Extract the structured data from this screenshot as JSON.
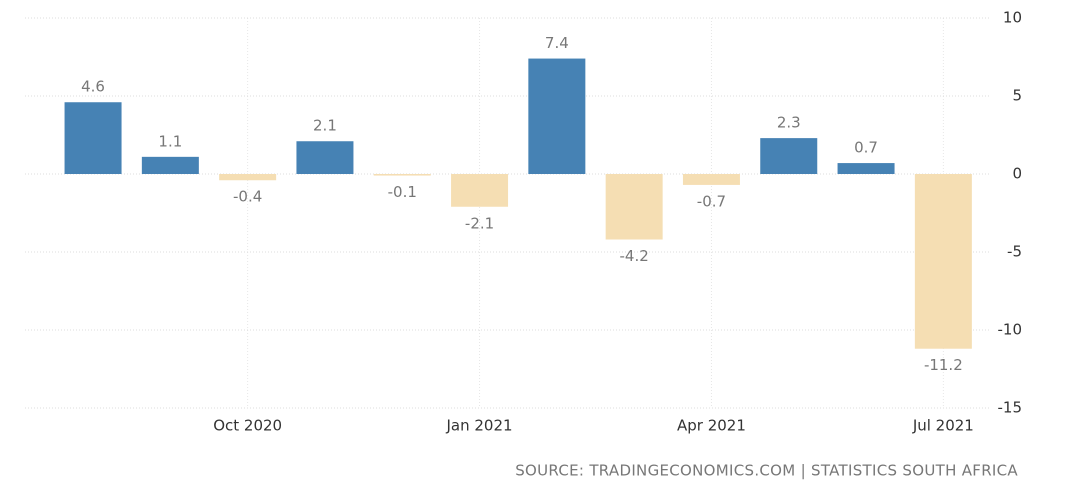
{
  "chart_data": {
    "type": "bar",
    "categories": [
      null,
      null,
      "Oct 2020",
      null,
      null,
      "Jan 2021",
      null,
      null,
      "Apr 2021",
      null,
      null,
      "Jul 2021"
    ],
    "values": [
      4.6,
      1.1,
      -0.4,
      2.1,
      -0.1,
      -2.1,
      7.4,
      -4.2,
      -0.7,
      2.3,
      0.7,
      -11.2
    ],
    "colors": [
      "#4682b4",
      "#4682b4",
      "#f5deb3",
      "#4682b4",
      "#f5deb3",
      "#f5deb3",
      "#4682b4",
      "#f5deb3",
      "#f5deb3",
      "#4682b4",
      "#4682b4",
      "#f5deb3"
    ],
    "ylim": [
      -15,
      10
    ],
    "yticks": [
      -15,
      -10,
      -5,
      0,
      5,
      10
    ],
    "grid": true,
    "y_axis_side": "right",
    "source": "SOURCE: TRADINGECONOMICS.COM | STATISTICS SOUTH AFRICA"
  }
}
